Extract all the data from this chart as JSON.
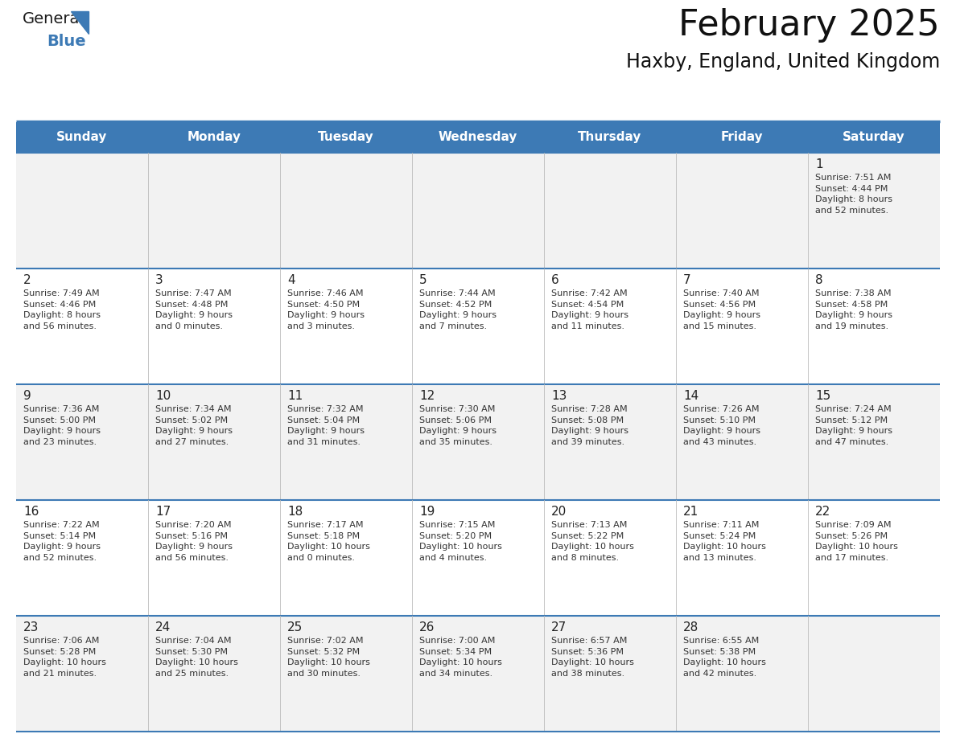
{
  "title": "February 2025",
  "subtitle": "Haxby, England, United Kingdom",
  "header_bg_color": "#3D7AB5",
  "header_text_color": "#FFFFFF",
  "row_bg_even": "#F2F2F2",
  "row_bg_odd": "#FFFFFF",
  "border_color": "#3D7AB5",
  "divider_color": "#3D7AB5",
  "cell_divider_color": "#BBBBBB",
  "day_headers": [
    "Sunday",
    "Monday",
    "Tuesday",
    "Wednesday",
    "Thursday",
    "Friday",
    "Saturday"
  ],
  "calendar_data": [
    [
      {
        "day": "",
        "info": ""
      },
      {
        "day": "",
        "info": ""
      },
      {
        "day": "",
        "info": ""
      },
      {
        "day": "",
        "info": ""
      },
      {
        "day": "",
        "info": ""
      },
      {
        "day": "",
        "info": ""
      },
      {
        "day": "1",
        "info": "Sunrise: 7:51 AM\nSunset: 4:44 PM\nDaylight: 8 hours\nand 52 minutes."
      }
    ],
    [
      {
        "day": "2",
        "info": "Sunrise: 7:49 AM\nSunset: 4:46 PM\nDaylight: 8 hours\nand 56 minutes."
      },
      {
        "day": "3",
        "info": "Sunrise: 7:47 AM\nSunset: 4:48 PM\nDaylight: 9 hours\nand 0 minutes."
      },
      {
        "day": "4",
        "info": "Sunrise: 7:46 AM\nSunset: 4:50 PM\nDaylight: 9 hours\nand 3 minutes."
      },
      {
        "day": "5",
        "info": "Sunrise: 7:44 AM\nSunset: 4:52 PM\nDaylight: 9 hours\nand 7 minutes."
      },
      {
        "day": "6",
        "info": "Sunrise: 7:42 AM\nSunset: 4:54 PM\nDaylight: 9 hours\nand 11 minutes."
      },
      {
        "day": "7",
        "info": "Sunrise: 7:40 AM\nSunset: 4:56 PM\nDaylight: 9 hours\nand 15 minutes."
      },
      {
        "day": "8",
        "info": "Sunrise: 7:38 AM\nSunset: 4:58 PM\nDaylight: 9 hours\nand 19 minutes."
      }
    ],
    [
      {
        "day": "9",
        "info": "Sunrise: 7:36 AM\nSunset: 5:00 PM\nDaylight: 9 hours\nand 23 minutes."
      },
      {
        "day": "10",
        "info": "Sunrise: 7:34 AM\nSunset: 5:02 PM\nDaylight: 9 hours\nand 27 minutes."
      },
      {
        "day": "11",
        "info": "Sunrise: 7:32 AM\nSunset: 5:04 PM\nDaylight: 9 hours\nand 31 minutes."
      },
      {
        "day": "12",
        "info": "Sunrise: 7:30 AM\nSunset: 5:06 PM\nDaylight: 9 hours\nand 35 minutes."
      },
      {
        "day": "13",
        "info": "Sunrise: 7:28 AM\nSunset: 5:08 PM\nDaylight: 9 hours\nand 39 minutes."
      },
      {
        "day": "14",
        "info": "Sunrise: 7:26 AM\nSunset: 5:10 PM\nDaylight: 9 hours\nand 43 minutes."
      },
      {
        "day": "15",
        "info": "Sunrise: 7:24 AM\nSunset: 5:12 PM\nDaylight: 9 hours\nand 47 minutes."
      }
    ],
    [
      {
        "day": "16",
        "info": "Sunrise: 7:22 AM\nSunset: 5:14 PM\nDaylight: 9 hours\nand 52 minutes."
      },
      {
        "day": "17",
        "info": "Sunrise: 7:20 AM\nSunset: 5:16 PM\nDaylight: 9 hours\nand 56 minutes."
      },
      {
        "day": "18",
        "info": "Sunrise: 7:17 AM\nSunset: 5:18 PM\nDaylight: 10 hours\nand 0 minutes."
      },
      {
        "day": "19",
        "info": "Sunrise: 7:15 AM\nSunset: 5:20 PM\nDaylight: 10 hours\nand 4 minutes."
      },
      {
        "day": "20",
        "info": "Sunrise: 7:13 AM\nSunset: 5:22 PM\nDaylight: 10 hours\nand 8 minutes."
      },
      {
        "day": "21",
        "info": "Sunrise: 7:11 AM\nSunset: 5:24 PM\nDaylight: 10 hours\nand 13 minutes."
      },
      {
        "day": "22",
        "info": "Sunrise: 7:09 AM\nSunset: 5:26 PM\nDaylight: 10 hours\nand 17 minutes."
      }
    ],
    [
      {
        "day": "23",
        "info": "Sunrise: 7:06 AM\nSunset: 5:28 PM\nDaylight: 10 hours\nand 21 minutes."
      },
      {
        "day": "24",
        "info": "Sunrise: 7:04 AM\nSunset: 5:30 PM\nDaylight: 10 hours\nand 25 minutes."
      },
      {
        "day": "25",
        "info": "Sunrise: 7:02 AM\nSunset: 5:32 PM\nDaylight: 10 hours\nand 30 minutes."
      },
      {
        "day": "26",
        "info": "Sunrise: 7:00 AM\nSunset: 5:34 PM\nDaylight: 10 hours\nand 34 minutes."
      },
      {
        "day": "27",
        "info": "Sunrise: 6:57 AM\nSunset: 5:36 PM\nDaylight: 10 hours\nand 38 minutes."
      },
      {
        "day": "28",
        "info": "Sunrise: 6:55 AM\nSunset: 5:38 PM\nDaylight: 10 hours\nand 42 minutes."
      },
      {
        "day": "",
        "info": ""
      }
    ]
  ],
  "logo_general_color": "#1a1a1a",
  "logo_blue_color": "#3D7AB5",
  "title_fontsize": 32,
  "subtitle_fontsize": 17,
  "header_fontsize": 11,
  "day_num_fontsize": 11,
  "info_fontsize": 8
}
